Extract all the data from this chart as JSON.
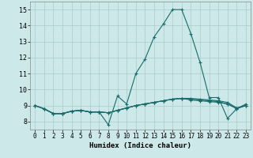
{
  "xlabel": "Humidex (Indice chaleur)",
  "xlim": [
    -0.5,
    23.5
  ],
  "ylim": [
    7.5,
    15.5
  ],
  "yticks": [
    8,
    9,
    10,
    11,
    12,
    13,
    14,
    15
  ],
  "xticks": [
    0,
    1,
    2,
    3,
    4,
    5,
    6,
    7,
    8,
    9,
    10,
    11,
    12,
    13,
    14,
    15,
    16,
    17,
    18,
    19,
    20,
    21,
    22,
    23
  ],
  "background_color": "#cce8e8",
  "grid_color": "#aacccc",
  "line_color": "#1a6b6b",
  "lines": [
    [
      9.0,
      8.8,
      8.5,
      8.5,
      8.65,
      8.7,
      8.6,
      8.6,
      7.8,
      9.6,
      9.1,
      11.0,
      11.9,
      13.3,
      14.1,
      15.0,
      15.0,
      13.5,
      11.7,
      9.5,
      9.5,
      8.2,
      8.8,
      9.1
    ],
    [
      9.0,
      8.8,
      8.5,
      8.5,
      8.65,
      8.7,
      8.6,
      8.6,
      8.55,
      8.7,
      8.85,
      9.0,
      9.1,
      9.2,
      9.3,
      9.4,
      9.45,
      9.45,
      9.4,
      9.35,
      9.3,
      9.2,
      8.85,
      9.0
    ],
    [
      9.0,
      8.8,
      8.5,
      8.5,
      8.65,
      8.7,
      8.6,
      8.6,
      8.55,
      8.7,
      8.85,
      9.0,
      9.1,
      9.2,
      9.3,
      9.4,
      9.45,
      9.4,
      9.35,
      9.3,
      9.25,
      9.1,
      8.85,
      9.0
    ],
    [
      9.0,
      8.8,
      8.5,
      8.5,
      8.65,
      8.7,
      8.6,
      8.6,
      8.55,
      8.7,
      8.85,
      9.0,
      9.1,
      9.2,
      9.3,
      9.4,
      9.45,
      9.35,
      9.3,
      9.25,
      9.2,
      9.1,
      8.8,
      9.0
    ]
  ]
}
